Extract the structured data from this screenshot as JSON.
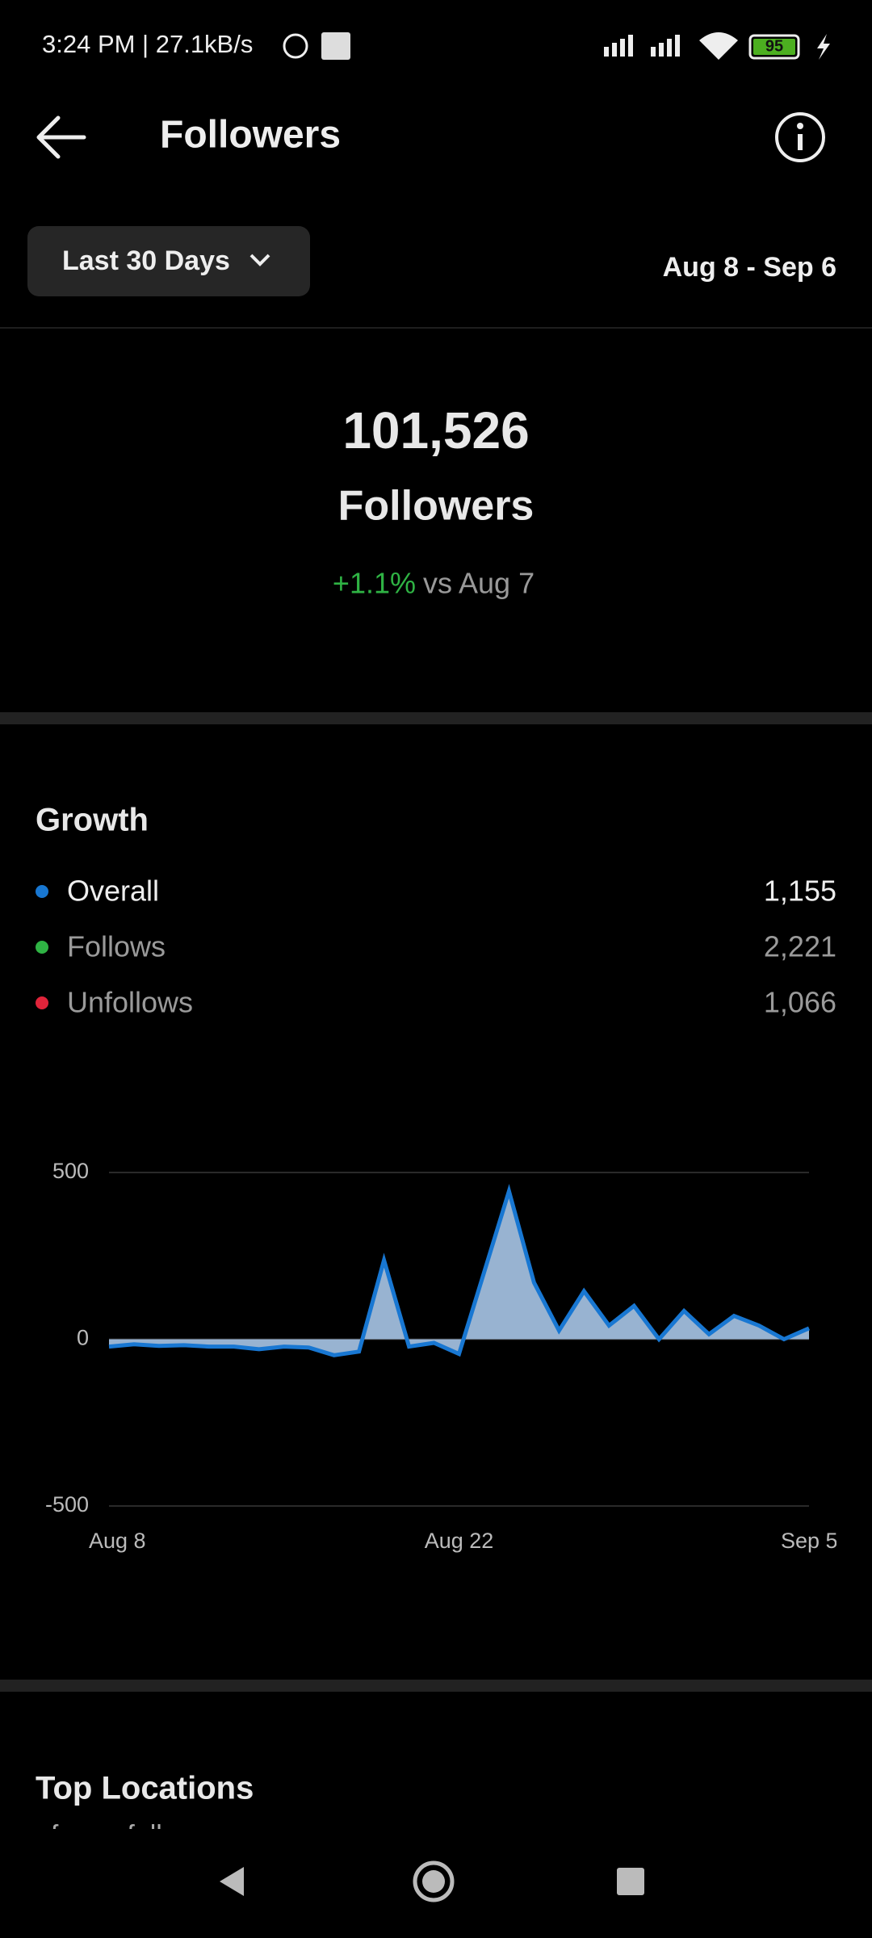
{
  "status_bar": {
    "time_speed": "3:24 PM | 27.1kB/s",
    "battery": "95"
  },
  "header": {
    "title": "Followers"
  },
  "filter": {
    "range": "Last 30 Days",
    "dates": "Aug 8 - Sep 6"
  },
  "summary": {
    "count": "101,526",
    "label": "Followers",
    "change": "+1.1%",
    "comparison": "vs Aug 7"
  },
  "growth": {
    "title": "Growth",
    "legend": [
      {
        "name": "Overall",
        "value": "1,155",
        "color": "#1877d2"
      },
      {
        "name": "Follows",
        "value": "2,221",
        "color": "#2fb344"
      },
      {
        "name": "Unfollows",
        "value": "1,066",
        "color": "#e0243a"
      }
    ]
  },
  "chart_data": {
    "type": "area",
    "categories": [
      "Aug 8",
      null,
      null,
      null,
      null,
      null,
      null,
      null,
      null,
      null,
      null,
      null,
      null,
      null,
      "Aug 22",
      null,
      null,
      null,
      null,
      null,
      null,
      null,
      null,
      null,
      null,
      null,
      null,
      null,
      "Sep 5"
    ],
    "values": [
      -22,
      -15,
      -20,
      -18,
      -22,
      -22,
      -30,
      -22,
      -25,
      -48,
      -37,
      237,
      -22,
      -11,
      -44,
      200,
      444,
      170,
      26,
      144,
      41,
      100,
      0,
      85,
      15,
      70,
      41,
      0,
      33
    ],
    "color": "#1877d2",
    "ylim": [
      -500,
      500
    ],
    "yticks": [
      -500,
      0,
      500
    ],
    "grid": true
  },
  "top_locations": {
    "title": "Top Locations",
    "subtitle": "of your followers"
  }
}
